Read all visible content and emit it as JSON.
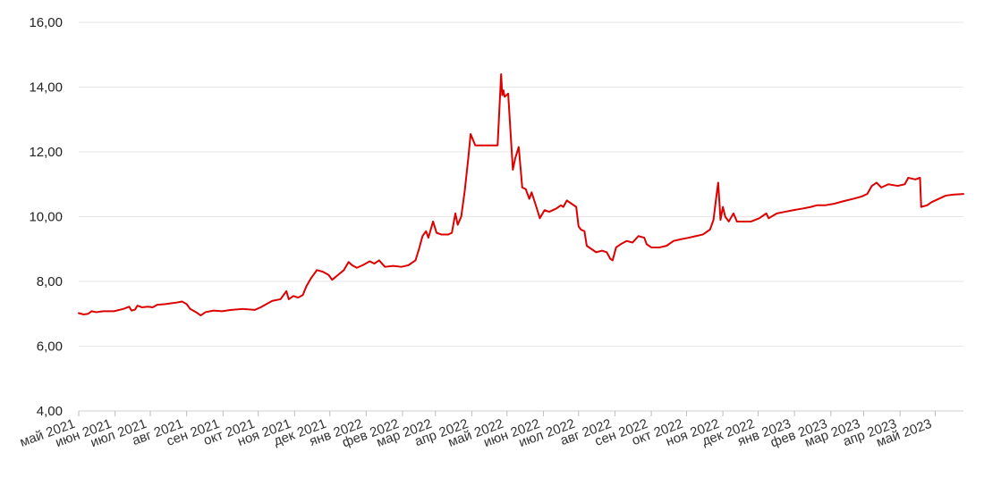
{
  "chart_data": {
    "type": "line",
    "title": "",
    "xlabel": "",
    "ylabel": "",
    "ylim": [
      4,
      16
    ],
    "y_ticks": [
      4,
      6,
      8,
      10,
      12,
      14,
      16
    ],
    "y_tick_labels": [
      "4,00",
      "6,00",
      "8,00",
      "10,00",
      "12,00",
      "14,00",
      "16,00"
    ],
    "x_tick_dates": [
      "2021-05-01",
      "2021-06-01",
      "2021-07-01",
      "2021-08-01",
      "2021-09-01",
      "2021-10-01",
      "2021-11-01",
      "2021-12-01",
      "2022-01-01",
      "2022-02-01",
      "2022-03-01",
      "2022-04-01",
      "2022-05-01",
      "2022-06-01",
      "2022-07-01",
      "2022-08-01",
      "2022-09-01",
      "2022-10-01",
      "2022-11-01",
      "2022-12-01",
      "2023-01-01",
      "2023-02-01",
      "2023-03-01",
      "2023-04-01",
      "2023-05-01"
    ],
    "x_tick_labels": [
      "май 2021",
      "июн 2021",
      "июл 2021",
      "авг 2021",
      "сен 2021",
      "окт 2021",
      "ноя 2021",
      "дек 2021",
      "янв 2022",
      "фев 2022",
      "мар 2022",
      "апр 2022",
      "май 2022",
      "июн 2022",
      "июл 2022",
      "авг 2022",
      "сен 2022",
      "окт 2022",
      "ноя 2022",
      "дек 2022",
      "янв 2023",
      "фев 2023",
      "мар 2023",
      "апр 2023",
      "май 2023"
    ],
    "x_range": [
      "2021-05-01",
      "2023-05-25"
    ],
    "grid": true,
    "series_color": "#dd0000",
    "series": [
      {
        "name": "",
        "points": [
          [
            "2021-05-01",
            7.02
          ],
          [
            "2021-05-05",
            6.98
          ],
          [
            "2021-05-09",
            7.0
          ],
          [
            "2021-05-12",
            7.08
          ],
          [
            "2021-05-16",
            7.05
          ],
          [
            "2021-05-22",
            7.08
          ],
          [
            "2021-05-31",
            7.08
          ],
          [
            "2021-06-08",
            7.15
          ],
          [
            "2021-06-13",
            7.22
          ],
          [
            "2021-06-15",
            7.1
          ],
          [
            "2021-06-18",
            7.13
          ],
          [
            "2021-06-20",
            7.25
          ],
          [
            "2021-06-24",
            7.2
          ],
          [
            "2021-06-29",
            7.22
          ],
          [
            "2021-07-03",
            7.2
          ],
          [
            "2021-07-07",
            7.28
          ],
          [
            "2021-07-14",
            7.3
          ],
          [
            "2021-07-18",
            7.32
          ],
          [
            "2021-07-24",
            7.35
          ],
          [
            "2021-07-28",
            7.38
          ],
          [
            "2021-08-01",
            7.3
          ],
          [
            "2021-08-04",
            7.15
          ],
          [
            "2021-08-09",
            7.05
          ],
          [
            "2021-08-13",
            6.95
          ],
          [
            "2021-08-17",
            7.05
          ],
          [
            "2021-08-24",
            7.1
          ],
          [
            "2021-08-31",
            7.08
          ],
          [
            "2021-09-08",
            7.12
          ],
          [
            "2021-09-18",
            7.15
          ],
          [
            "2021-09-28",
            7.12
          ],
          [
            "2021-10-03",
            7.2
          ],
          [
            "2021-10-08",
            7.3
          ],
          [
            "2021-10-13",
            7.4
          ],
          [
            "2021-10-20",
            7.45
          ],
          [
            "2021-10-25",
            7.7
          ],
          [
            "2021-10-27",
            7.45
          ],
          [
            "2021-10-31",
            7.55
          ],
          [
            "2021-11-04",
            7.5
          ],
          [
            "2021-11-08",
            7.58
          ],
          [
            "2021-11-11",
            7.85
          ],
          [
            "2021-11-15",
            8.1
          ],
          [
            "2021-11-20",
            8.35
          ],
          [
            "2021-11-25",
            8.3
          ],
          [
            "2021-11-30",
            8.2
          ],
          [
            "2021-12-03",
            8.05
          ],
          [
            "2021-12-08",
            8.2
          ],
          [
            "2021-12-13",
            8.35
          ],
          [
            "2021-12-17",
            8.6
          ],
          [
            "2021-12-20",
            8.5
          ],
          [
            "2021-12-24",
            8.42
          ],
          [
            "2021-12-29",
            8.5
          ],
          [
            "2022-01-04",
            8.62
          ],
          [
            "2022-01-08",
            8.55
          ],
          [
            "2022-01-12",
            8.65
          ],
          [
            "2022-01-17",
            8.45
          ],
          [
            "2022-01-24",
            8.48
          ],
          [
            "2022-01-31",
            8.45
          ],
          [
            "2022-02-06",
            8.5
          ],
          [
            "2022-02-12",
            8.65
          ],
          [
            "2022-02-15",
            9.0
          ],
          [
            "2022-02-18",
            9.4
          ],
          [
            "2022-02-21",
            9.55
          ],
          [
            "2022-02-23",
            9.35
          ],
          [
            "2022-02-27",
            9.85
          ],
          [
            "2022-03-02",
            9.5
          ],
          [
            "2022-03-06",
            9.45
          ],
          [
            "2022-03-12",
            9.45
          ],
          [
            "2022-03-15",
            9.5
          ],
          [
            "2022-03-18",
            10.1
          ],
          [
            "2022-03-20",
            9.75
          ],
          [
            "2022-03-23",
            10.0
          ],
          [
            "2022-03-26",
            10.8
          ],
          [
            "2022-03-29",
            11.8
          ],
          [
            "2022-03-31",
            12.55
          ],
          [
            "2022-04-04",
            12.2
          ],
          [
            "2022-04-10",
            12.2
          ],
          [
            "2022-04-17",
            12.2
          ],
          [
            "2022-04-23",
            12.2
          ],
          [
            "2022-04-26",
            14.4
          ],
          [
            "2022-04-27",
            13.75
          ],
          [
            "2022-04-28",
            13.9
          ],
          [
            "2022-04-29",
            13.7
          ],
          [
            "2022-05-02",
            13.8
          ],
          [
            "2022-05-06",
            11.45
          ],
          [
            "2022-05-08",
            11.8
          ],
          [
            "2022-05-11",
            12.15
          ],
          [
            "2022-05-14",
            10.9
          ],
          [
            "2022-05-17",
            10.85
          ],
          [
            "2022-05-20",
            10.55
          ],
          [
            "2022-05-22",
            10.75
          ],
          [
            "2022-05-26",
            10.3
          ],
          [
            "2022-05-29",
            9.95
          ],
          [
            "2022-06-02",
            10.2
          ],
          [
            "2022-06-06",
            10.15
          ],
          [
            "2022-06-12",
            10.25
          ],
          [
            "2022-06-16",
            10.35
          ],
          [
            "2022-06-18",
            10.3
          ],
          [
            "2022-06-21",
            10.5
          ],
          [
            "2022-06-25",
            10.4
          ],
          [
            "2022-06-29",
            10.3
          ],
          [
            "2022-07-01",
            9.7
          ],
          [
            "2022-07-03",
            9.6
          ],
          [
            "2022-07-06",
            9.55
          ],
          [
            "2022-07-08",
            9.1
          ],
          [
            "2022-07-12",
            9.0
          ],
          [
            "2022-07-16",
            8.9
          ],
          [
            "2022-07-21",
            8.95
          ],
          [
            "2022-07-25",
            8.9
          ],
          [
            "2022-07-28",
            8.7
          ],
          [
            "2022-07-30",
            8.65
          ],
          [
            "2022-08-02",
            9.05
          ],
          [
            "2022-08-06",
            9.15
          ],
          [
            "2022-08-11",
            9.25
          ],
          [
            "2022-08-16",
            9.2
          ],
          [
            "2022-08-21",
            9.4
          ],
          [
            "2022-08-26",
            9.35
          ],
          [
            "2022-08-28",
            9.15
          ],
          [
            "2022-09-01",
            9.05
          ],
          [
            "2022-09-08",
            9.05
          ],
          [
            "2022-09-14",
            9.1
          ],
          [
            "2022-09-20",
            9.25
          ],
          [
            "2022-09-26",
            9.3
          ],
          [
            "2022-10-03",
            9.35
          ],
          [
            "2022-10-09",
            9.4
          ],
          [
            "2022-10-15",
            9.45
          ],
          [
            "2022-10-21",
            9.6
          ],
          [
            "2022-10-24",
            9.9
          ],
          [
            "2022-10-26",
            10.5
          ],
          [
            "2022-10-28",
            11.05
          ],
          [
            "2022-10-30",
            9.9
          ],
          [
            "2022-11-01",
            10.3
          ],
          [
            "2022-11-03",
            10.0
          ],
          [
            "2022-11-06",
            9.85
          ],
          [
            "2022-11-10",
            10.1
          ],
          [
            "2022-11-13",
            9.85
          ],
          [
            "2022-11-18",
            9.85
          ],
          [
            "2022-11-25",
            9.85
          ],
          [
            "2022-12-02",
            9.95
          ],
          [
            "2022-12-08",
            10.1
          ],
          [
            "2022-12-10",
            9.95
          ],
          [
            "2022-12-17",
            10.1
          ],
          [
            "2022-12-24",
            10.15
          ],
          [
            "2022-12-31",
            10.2
          ],
          [
            "2023-01-08",
            10.25
          ],
          [
            "2023-01-15",
            10.3
          ],
          [
            "2023-01-20",
            10.35
          ],
          [
            "2023-01-27",
            10.35
          ],
          [
            "2023-02-04",
            10.4
          ],
          [
            "2023-02-12",
            10.48
          ],
          [
            "2023-02-20",
            10.55
          ],
          [
            "2023-02-27",
            10.62
          ],
          [
            "2023-03-04",
            10.7
          ],
          [
            "2023-03-08",
            10.95
          ],
          [
            "2023-03-12",
            11.05
          ],
          [
            "2023-03-16",
            10.9
          ],
          [
            "2023-03-22",
            11.0
          ],
          [
            "2023-03-30",
            10.95
          ],
          [
            "2023-04-05",
            11.0
          ],
          [
            "2023-04-08",
            11.2
          ],
          [
            "2023-04-14",
            11.15
          ],
          [
            "2023-04-18",
            11.2
          ],
          [
            "2023-04-19",
            10.3
          ],
          [
            "2023-04-24",
            10.35
          ],
          [
            "2023-04-28",
            10.45
          ],
          [
            "2023-05-04",
            10.55
          ],
          [
            "2023-05-10",
            10.65
          ],
          [
            "2023-05-16",
            10.68
          ],
          [
            "2023-05-25",
            10.7
          ]
        ]
      }
    ]
  }
}
